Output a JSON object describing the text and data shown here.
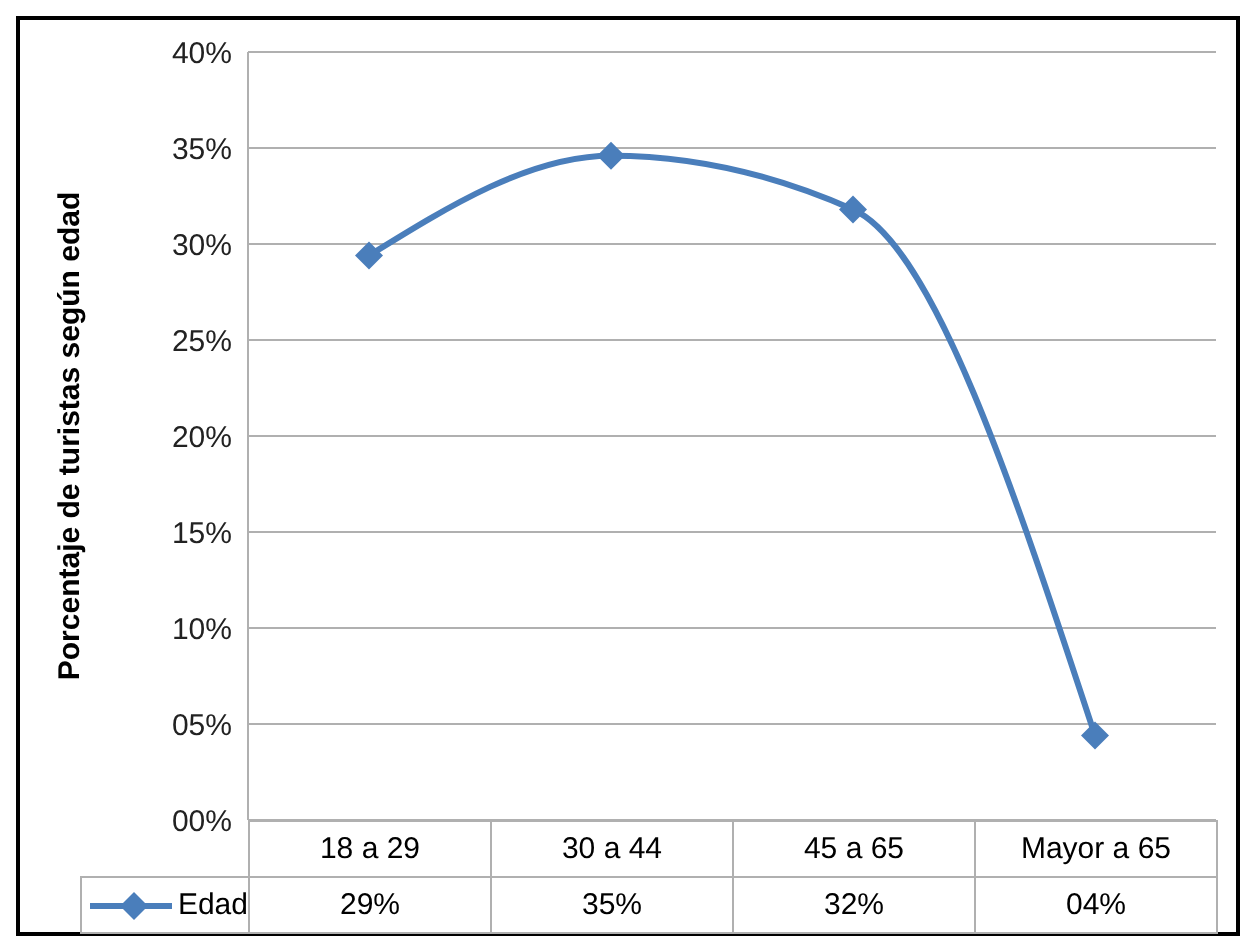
{
  "chart_data": {
    "type": "line",
    "ylabel": "Porcentaje de turistas según edad",
    "categories": [
      "18 a 29",
      "30 a 44",
      "45 a 65",
      "Mayor a 65"
    ],
    "series": [
      {
        "name": "Edad",
        "color": "#4a7ebb",
        "values": [
          29.4,
          34.6,
          31.8,
          4.4
        ],
        "value_labels": [
          "29%",
          "35%",
          "32%",
          "04%"
        ]
      }
    ],
    "ylim": [
      0,
      40
    ],
    "yticks": [
      {
        "value": 0,
        "label": "00%"
      },
      {
        "value": 5,
        "label": "05%"
      },
      {
        "value": 10,
        "label": "10%"
      },
      {
        "value": 15,
        "label": "15%"
      },
      {
        "value": 20,
        "label": "20%"
      },
      {
        "value": 25,
        "label": "25%"
      },
      {
        "value": 30,
        "label": "30%"
      },
      {
        "value": 35,
        "label": "35%"
      },
      {
        "value": 40,
        "label": "40%"
      }
    ],
    "grid": "y",
    "legend": "bottom",
    "marker": "diamond",
    "line_style": "solid"
  }
}
